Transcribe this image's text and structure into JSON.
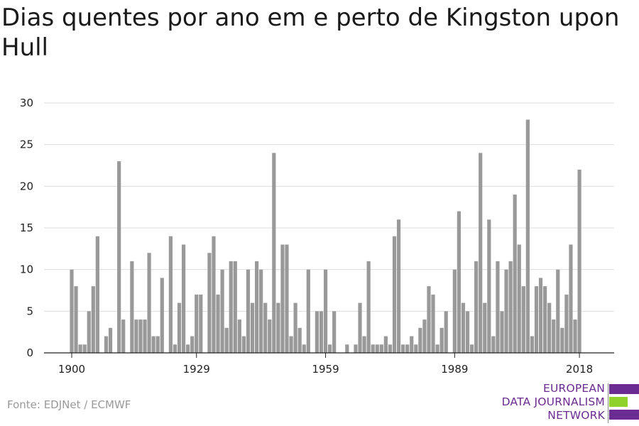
{
  "title": "Dias quentes por ano em e perto de Kingston upon Hull",
  "source": "Fonte: EDJNet / ECMWF",
  "logo": {
    "lines": [
      "EUROPEAN",
      "DATA JOURNALISM",
      "NETWORK"
    ],
    "colors": [
      "#6a2c91",
      "#8fd22b",
      "#6a2c91"
    ]
  },
  "chart_data": {
    "type": "bar",
    "title": "Dias quentes por ano em e perto de Kingston upon Hull",
    "xlabel": "",
    "ylabel": "",
    "ylim": [
      0,
      30
    ],
    "yticks": [
      0,
      5,
      10,
      15,
      20,
      25,
      30
    ],
    "xticks": [
      1900,
      1929,
      1959,
      1989,
      2018
    ],
    "grid": true,
    "bar_color": "#999999",
    "x_start": 1900,
    "x_end": 2018,
    "values": [
      10,
      8,
      1,
      1,
      5,
      8,
      14,
      0,
      2,
      3,
      0,
      23,
      4,
      0,
      11,
      4,
      4,
      4,
      12,
      2,
      2,
      9,
      0,
      14,
      1,
      6,
      13,
      1,
      2,
      7,
      7,
      0,
      12,
      14,
      7,
      10,
      3,
      11,
      11,
      4,
      2,
      10,
      6,
      11,
      10,
      6,
      4,
      24,
      6,
      13,
      13,
      2,
      6,
      3,
      1,
      10,
      0,
      5,
      5,
      10,
      1,
      5,
      0,
      0,
      1,
      0,
      1,
      6,
      2,
      11,
      1,
      1,
      1,
      2,
      1,
      14,
      16,
      1,
      1,
      2,
      1,
      3,
      4,
      8,
      7,
      1,
      3,
      5,
      0,
      10,
      17,
      6,
      5,
      1,
      11,
      24,
      6,
      16,
      2,
      11,
      5,
      10,
      11,
      19,
      13,
      8,
      28,
      2,
      8,
      9,
      8,
      6,
      4,
      10,
      3,
      7,
      13,
      4,
      22
    ]
  }
}
